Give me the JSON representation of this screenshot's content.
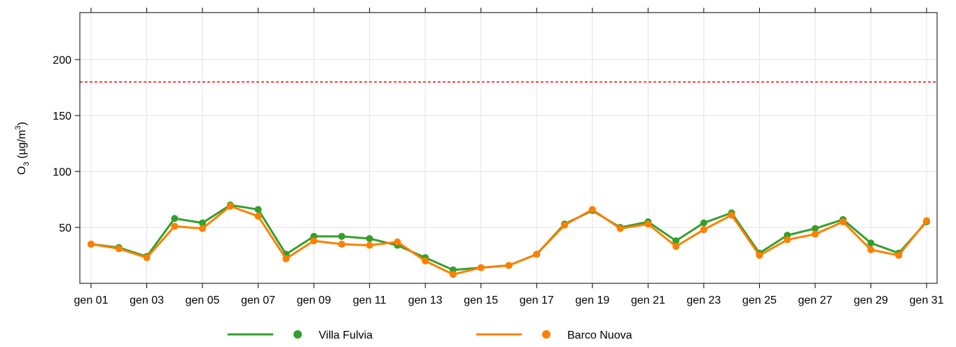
{
  "chart_data": {
    "type": "line",
    "categories": [
      "gen 01",
      null,
      "gen 03",
      null,
      "gen 05",
      null,
      "gen 07",
      null,
      "gen 09",
      null,
      "gen 11",
      null,
      "gen 13",
      null,
      "gen 15",
      null,
      "gen 17",
      null,
      "gen 19",
      null,
      "gen 21",
      null,
      "gen 23",
      null,
      "gen 25",
      null,
      "gen 27",
      null,
      "gen 29",
      null,
      "gen 31"
    ],
    "ylabel": {
      "base": "O",
      "sub": "3",
      "mid": " (µg/m",
      "sup": "3",
      "end": ")"
    },
    "ylim": [
      0,
      242
    ],
    "yticks": [
      50,
      100,
      150,
      200
    ],
    "grid": true,
    "reference_line": {
      "value": 180,
      "color": "#ff0000"
    },
    "legend": "bottom",
    "series": [
      {
        "name": "Villa Fulvia",
        "color": "#33a02c",
        "values": [
          35,
          32,
          24,
          58,
          54,
          70,
          66,
          26,
          42,
          42,
          40,
          34,
          23,
          12,
          14,
          16,
          26,
          53,
          65,
          50,
          55,
          38,
          54,
          63,
          27,
          43,
          49,
          57,
          36,
          27,
          55
        ]
      },
      {
        "name": "Barco Nuova",
        "color": "#ff7f00",
        "values": [
          35,
          31,
          23,
          51,
          49,
          69,
          60,
          22,
          38,
          35,
          34,
          37,
          20,
          8,
          14,
          16,
          26,
          52,
          66,
          49,
          53,
          33,
          48,
          61,
          25,
          39,
          44,
          55,
          30,
          25,
          56
        ]
      }
    ]
  }
}
